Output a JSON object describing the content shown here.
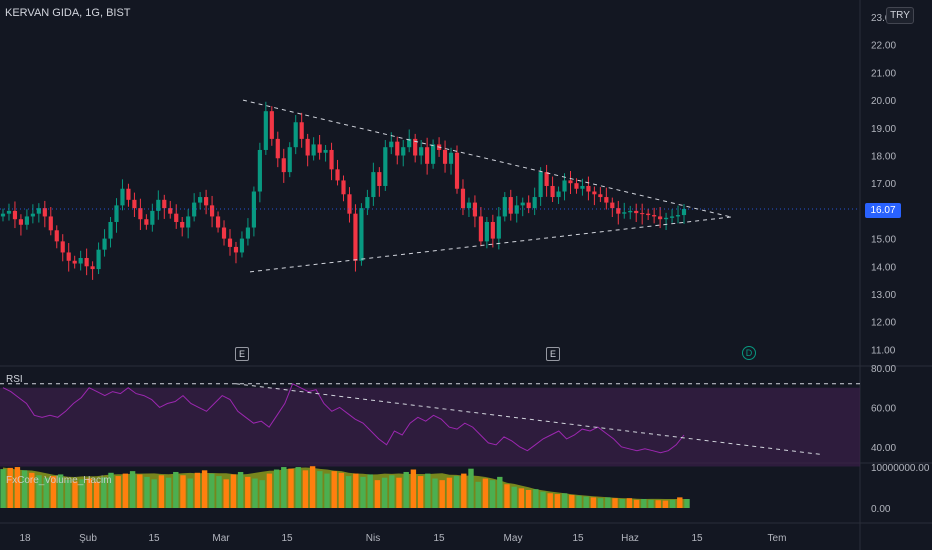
{
  "header": {
    "symbol_title": "KERVAN GIDA, 1G, BIST",
    "currency": "TRY"
  },
  "last_price_label": "16.07",
  "colors": {
    "background": "#131722",
    "up": "#089981",
    "down": "#f23645",
    "rsi_line": "#9c27b0",
    "rsi_band": "#3a2048",
    "volume_up": "#4caf50",
    "volume_down": "#ff7f0e",
    "volume_avg_area": "#8a9a1c"
  },
  "event_markers": [
    {
      "label": "E",
      "date": "2024-03-04",
      "kind": "earnings"
    },
    {
      "label": "E",
      "date": "2024-05-07",
      "kind": "earnings"
    },
    {
      "label": "D",
      "date": "2024-06-25",
      "kind": "dividend"
    }
  ],
  "chart_data": [
    {
      "type": "candlestick",
      "title": "KERVAN GIDA, 1G, BIST",
      "y_axis_labels": [
        "23.00",
        "22.00",
        "21.00",
        "20.00",
        "19.00",
        "18.00",
        "17.00",
        "16.00",
        "15.00",
        "14.00",
        "13.00",
        "12.00",
        "11.00"
      ],
      "ylim": [
        10.5,
        23.3
      ],
      "x_axis_labels": [
        "18",
        "Şub",
        "15",
        "Mar",
        "15",
        "Nis",
        "15",
        "May",
        "15",
        "Haz",
        "15",
        "Tem"
      ],
      "last_price": 16.07,
      "close_series": [
        15.9,
        16.0,
        15.7,
        15.5,
        15.8,
        15.9,
        16.1,
        15.8,
        15.3,
        14.9,
        14.5,
        14.2,
        14.1,
        14.3,
        14.0,
        13.9,
        14.6,
        15.0,
        15.6,
        16.2,
        16.8,
        16.4,
        16.1,
        15.7,
        15.5,
        16.0,
        16.4,
        16.1,
        15.9,
        15.6,
        15.4,
        15.8,
        16.3,
        16.5,
        16.2,
        15.8,
        15.4,
        15.0,
        14.7,
        14.5,
        15.0,
        15.4,
        16.7,
        18.2,
        19.6,
        18.6,
        17.9,
        17.4,
        18.3,
        19.2,
        18.6,
        18.0,
        18.4,
        18.1,
        18.2,
        17.5,
        17.1,
        16.6,
        15.9,
        14.2,
        16.1,
        16.5,
        17.4,
        16.9,
        18.3,
        18.5,
        18.0,
        18.3,
        18.6,
        18.0,
        18.3,
        17.7,
        18.4,
        18.2,
        17.7,
        18.1,
        16.8,
        16.1,
        16.3,
        15.8,
        14.9,
        15.6,
        15.0,
        15.8,
        16.5,
        15.9,
        16.2,
        16.3,
        16.1,
        16.5,
        17.4,
        16.9,
        16.5,
        16.7,
        17.1,
        17.0,
        16.8,
        16.9,
        16.7,
        16.6,
        16.5,
        16.3,
        16.1,
        15.9,
        15.95,
        16.0,
        15.92,
        15.9,
        15.85,
        15.8,
        15.7,
        15.75,
        15.8,
        15.85,
        16.07
      ],
      "trendlines": [
        {
          "name": "upper",
          "from": [
            "2024-03-05",
            20.0
          ],
          "to": [
            "2024-06-20",
            15.8
          ]
        },
        {
          "name": "lower",
          "from": [
            "2024-03-05",
            13.7
          ],
          "to": [
            "2024-06-20",
            15.8
          ]
        }
      ],
      "price_line": 16.07
    },
    {
      "type": "line",
      "title": "RSI",
      "y_axis_labels": [
        "80.00",
        "60.00",
        "40.00"
      ],
      "ylim": [
        30,
        80
      ],
      "levels": [
        70,
        30
      ],
      "values": [
        70,
        68,
        65,
        62,
        56,
        55,
        56,
        55,
        58,
        62,
        65,
        70,
        68,
        66,
        68,
        67,
        70,
        67,
        66,
        64,
        60,
        62,
        63,
        66,
        62,
        60,
        58,
        62,
        66,
        64,
        58,
        55,
        52,
        53,
        50,
        56,
        62,
        72,
        70,
        68,
        69,
        62,
        58,
        60,
        57,
        54,
        52,
        48,
        44,
        41,
        48,
        46,
        52,
        55,
        53,
        56,
        54,
        50,
        49,
        52,
        50,
        46,
        42,
        41,
        45,
        43,
        40,
        38,
        41,
        44,
        46,
        48,
        44,
        46,
        49,
        48,
        50,
        47,
        44,
        40,
        39,
        38,
        39,
        38,
        37,
        38,
        41,
        46
      ],
      "trendlines": [
        {
          "name": "rsi-resistance",
          "from": [
            "2024-03-05",
            72
          ],
          "to": [
            "2024-07-10",
            36
          ]
        },
        {
          "name": "rsi-level-70",
          "value": 70
        }
      ]
    },
    {
      "type": "bar",
      "title": "FxCore_Volume_Hacim",
      "y_axis_labels": [
        "10000000.00",
        "0.00"
      ],
      "ylim": [
        0,
        12000000
      ],
      "values": [
        9.5,
        9.8,
        10.0,
        9.2,
        8.6,
        8.0,
        7.4,
        7.8,
        8.2,
        6.9,
        6.5,
        7.0,
        7.2,
        6.4,
        7.5,
        8.6,
        7.8,
        8.4,
        9.0,
        8.2,
        7.6,
        7.0,
        8.0,
        7.4,
        8.8,
        8.0,
        7.2,
        8.6,
        9.2,
        8.4,
        7.8,
        7.0,
        8.2,
        8.8,
        7.6,
        7.2,
        6.8,
        8.4,
        9.4,
        10.0,
        9.6,
        10.0,
        9.2,
        10.2,
        9.0,
        8.4,
        9.0,
        8.6,
        7.8,
        8.4,
        7.6,
        8.2,
        6.8,
        7.4,
        8.0,
        7.4,
        8.8,
        9.4,
        7.8,
        8.4,
        7.2,
        6.8,
        7.4,
        7.8,
        8.4,
        9.6,
        6.4,
        7.2,
        6.8,
        7.6,
        5.8,
        5.2,
        4.8,
        4.4,
        4.6,
        4.0,
        3.6,
        3.4,
        3.6,
        3.2,
        3.0,
        2.8,
        2.6,
        2.4,
        2.6,
        2.4,
        2.2,
        2.4,
        2.0,
        2.2,
        2.0,
        1.9,
        1.8,
        2.0,
        2.6,
        2.2
      ],
      "value_unit": "millions"
    }
  ]
}
